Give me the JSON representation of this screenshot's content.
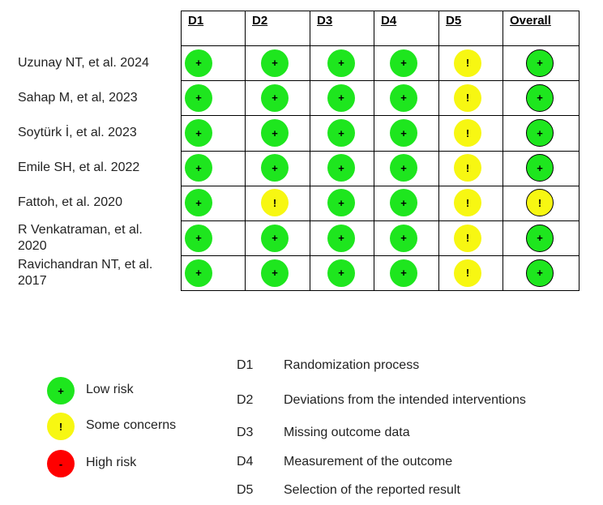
{
  "table": {
    "columns": [
      "D1",
      "D2",
      "D3",
      "D4",
      "D5",
      "Overall"
    ],
    "rows": [
      {
        "study": "Uzunay NT, et al. 2024",
        "judgements": [
          "+",
          "+",
          "+",
          "+",
          "!",
          "+"
        ]
      },
      {
        "study": "Sahap M, et al, 2023",
        "judgements": [
          "+",
          "+",
          "+",
          "+",
          "!",
          "+"
        ]
      },
      {
        "study": "Soytürk İ, et al. 2023",
        "judgements": [
          "+",
          "+",
          "+",
          "+",
          "!",
          "+"
        ]
      },
      {
        "study": "Emile SH, et al. 2022",
        "judgements": [
          "+",
          "+",
          "+",
          "+",
          "!",
          "+"
        ]
      },
      {
        "study": "Fattoh, et al. 2020",
        "judgements": [
          "+",
          "!",
          "+",
          "+",
          "!",
          "!"
        ]
      },
      {
        "study": "R Venkatraman, et al. 2020",
        "judgements": [
          "+",
          "+",
          "+",
          "+",
          "!",
          "+"
        ]
      },
      {
        "study": "Ravichandran NT, et al. 2017",
        "judgements": [
          "+",
          "+",
          "+",
          "+",
          "!",
          "+"
        ]
      }
    ]
  },
  "legend": [
    {
      "symbol": "+",
      "label": "Low risk",
      "color": "#1ee61e"
    },
    {
      "symbol": "!",
      "label": "Some concerns",
      "color": "#f7f712"
    },
    {
      "symbol": "-",
      "label": "High risk",
      "color": "#ff0000"
    }
  ],
  "domains": [
    {
      "code": "D1",
      "description": "Randomization process"
    },
    {
      "code": "D2",
      "description": "Deviations from the intended interventions"
    },
    {
      "code": "D3",
      "description": "Missing outcome data"
    },
    {
      "code": "D4",
      "description": "Measurement of the outcome"
    },
    {
      "code": "D5",
      "description": "Selection of the reported result"
    }
  ]
}
